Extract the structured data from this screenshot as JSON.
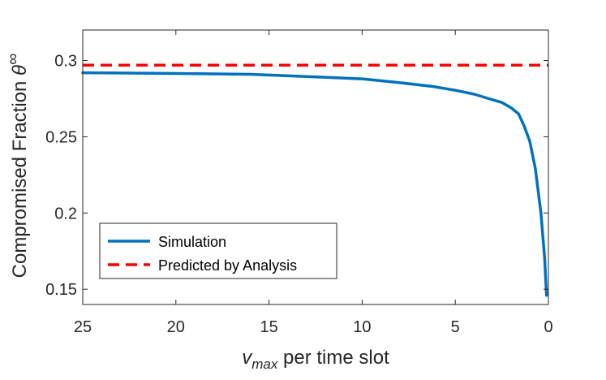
{
  "chart_data": {
    "type": "line",
    "title": "",
    "xlabel": {
      "symbol": "v",
      "subscript": "max",
      "text": " per time slot"
    },
    "ylabel": {
      "text": "Compromised Fraction ",
      "symbol": "θ",
      "superscript": "∞"
    },
    "x_reversed": true,
    "xlim": [
      0,
      25
    ],
    "ylim": [
      0.14,
      0.32
    ],
    "x_ticks": [
      25,
      20,
      15,
      10,
      5,
      0
    ],
    "x_tick_labels": [
      "25",
      "20",
      "15",
      "10",
      "5",
      "0"
    ],
    "y_ticks": [
      0.15,
      0.2,
      0.25,
      0.3
    ],
    "y_tick_labels": [
      "0.15",
      "0.2",
      "0.25",
      "0.3"
    ],
    "grid": false,
    "legend_position": "bottom-left",
    "series": [
      {
        "name": "Simulation",
        "color": "#0072BD",
        "style": "solid",
        "x": [
          25,
          20,
          16,
          13,
          10,
          8,
          6.2,
          5,
          4,
          3.2,
          2.5,
          2,
          1.6,
          1.3,
          1.0,
          0.7,
          0.4,
          0.2,
          0.1
        ],
        "y": [
          0.292,
          0.2915,
          0.291,
          0.2895,
          0.288,
          0.2855,
          0.283,
          0.2805,
          0.278,
          0.275,
          0.2725,
          0.269,
          0.265,
          0.257,
          0.247,
          0.229,
          0.2,
          0.17,
          0.146
        ]
      },
      {
        "name": "Predicted by Analysis",
        "color": "#FF0000",
        "style": "dashed",
        "x": [
          25,
          0
        ],
        "y": [
          0.297,
          0.297
        ]
      }
    ]
  }
}
